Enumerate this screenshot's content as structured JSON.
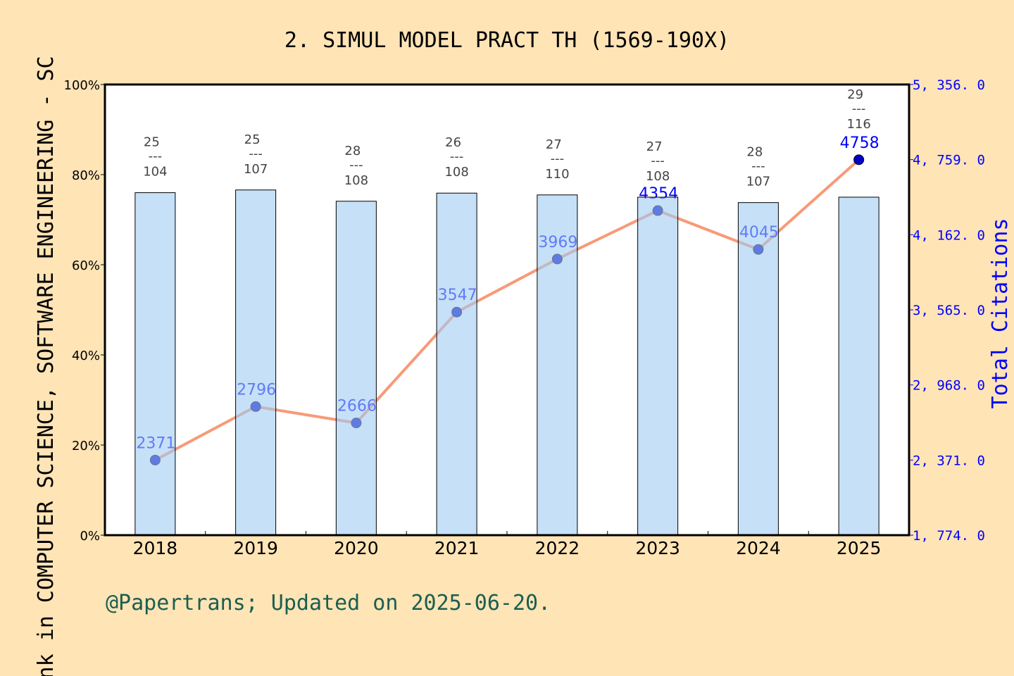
{
  "chart_data": {
    "type": "bar+line",
    "title": "2. SIMUL MODEL PRACT TH (1569-190X)",
    "ylabel": "Rank in COMPUTER SCIENCE, SOFTWARE ENGINEERING - SC",
    "y2label": "Total Citations",
    "categories": [
      "2018",
      "2019",
      "2020",
      "2021",
      "2022",
      "2023",
      "2024",
      "2025"
    ],
    "ylim": [
      0,
      100
    ],
    "yticks": [
      "0%",
      "20%",
      "40%",
      "60%",
      "80%",
      "100%"
    ],
    "y2lim": [
      1774.0,
      5356.0
    ],
    "y2ticks": [
      "1, 774. 0",
      "2, 371. 0",
      "2, 968. 0",
      "3, 565. 0",
      "4, 162. 0",
      "4, 759. 0",
      "5, 356. 0"
    ],
    "y2tick_values": [
      1774,
      2371,
      2968,
      3565,
      4162,
      4759,
      5356
    ],
    "rank": [
      25,
      25,
      28,
      26,
      27,
      27,
      28,
      29
    ],
    "total": [
      104,
      107,
      108,
      108,
      110,
      108,
      107,
      116
    ],
    "bar_percent": [
      76.0,
      76.6,
      74.1,
      75.9,
      75.5,
      75.0,
      73.8,
      75.0
    ],
    "citations": [
      2371,
      2796,
      2666,
      3547,
      3969,
      4354,
      4045,
      4758
    ],
    "colors": {
      "bar": "#c5e0f7",
      "line": "#f89a78",
      "point": "#0000cc",
      "citation_label": "#0000ff",
      "background": "#ffe4b6",
      "footer": "#1a5e50"
    },
    "grid": false
  },
  "footer": "@Papertrans; Updated on 2025-06-20."
}
